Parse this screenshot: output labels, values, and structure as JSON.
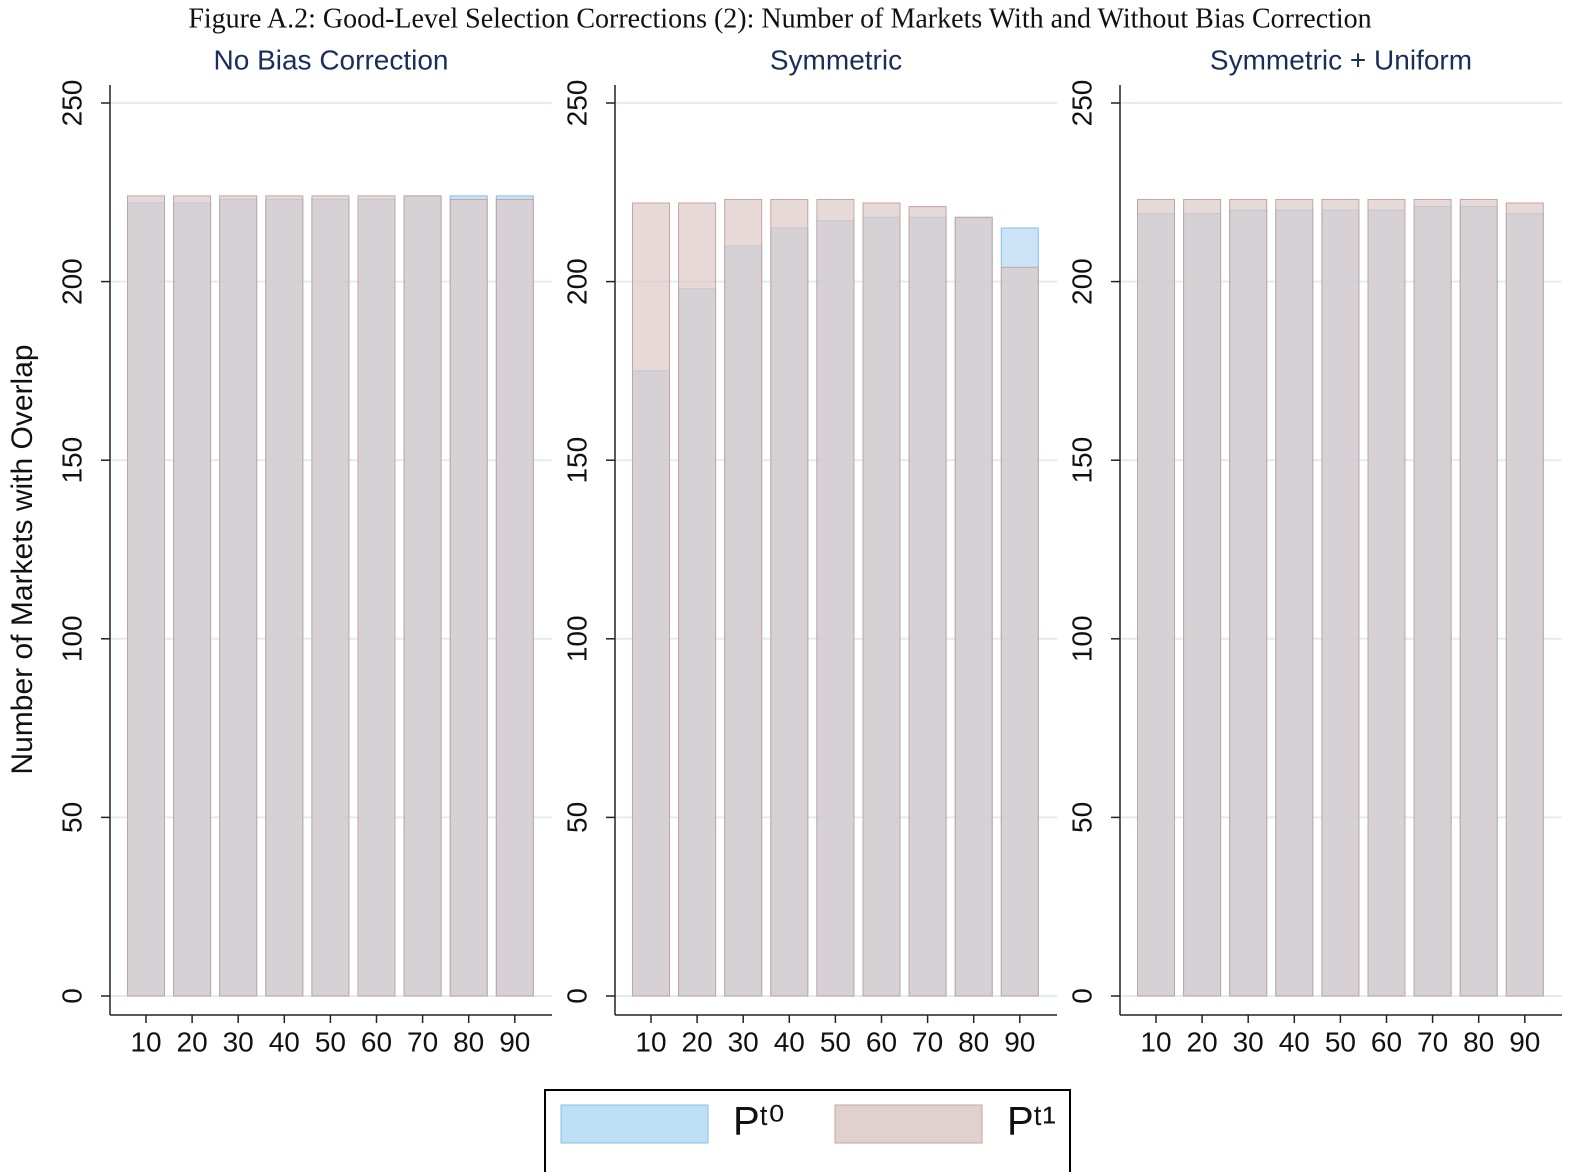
{
  "title": "Figure A.2: Good-Level Selection Corrections (2): Number of Markets With and Without Bias Correction",
  "chart_data": [
    {
      "type": "bar",
      "title": "No Bias Correction",
      "ylabel": "Number of Markets with Overlap",
      "categories": [
        "10",
        "20",
        "30",
        "40",
        "50",
        "60",
        "70",
        "80",
        "90"
      ],
      "series": [
        {
          "name": "Pᵗ⁰",
          "color": "#b3d8f2",
          "values": [
            222,
            222,
            223,
            223,
            223,
            223,
            224,
            224,
            224
          ]
        },
        {
          "name": "Pᵗ¹",
          "color": "#dcc9c6",
          "values": [
            224,
            224,
            224,
            224,
            224,
            224,
            224,
            223,
            223
          ]
        }
      ],
      "ylim": [
        0,
        250
      ],
      "yticks": [
        0,
        50,
        100,
        150,
        200,
        250
      ],
      "grid": true
    },
    {
      "type": "bar",
      "title": "Symmetric",
      "categories": [
        "10",
        "20",
        "30",
        "40",
        "50",
        "60",
        "70",
        "80",
        "90"
      ],
      "series": [
        {
          "name": "Pᵗ⁰",
          "color": "#b3d8f2",
          "values": [
            175,
            198,
            210,
            215,
            217,
            218,
            218,
            218,
            215
          ]
        },
        {
          "name": "Pᵗ¹",
          "color": "#dcc9c6",
          "values": [
            222,
            222,
            223,
            223,
            223,
            222,
            221,
            218,
            204
          ]
        }
      ],
      "ylim": [
        0,
        250
      ],
      "yticks": [
        0,
        50,
        100,
        150,
        200,
        250
      ],
      "grid": true
    },
    {
      "type": "bar",
      "title": "Symmetric + Uniform",
      "categories": [
        "10",
        "20",
        "30",
        "40",
        "50",
        "60",
        "70",
        "80",
        "90"
      ],
      "series": [
        {
          "name": "Pᵗ⁰",
          "color": "#b3d8f2",
          "values": [
            219,
            219,
            220,
            220,
            220,
            220,
            221,
            221,
            219
          ]
        },
        {
          "name": "Pᵗ¹",
          "color": "#dcc9c6",
          "values": [
            223,
            223,
            223,
            223,
            223,
            223,
            223,
            223,
            222
          ]
        }
      ],
      "ylim": [
        0,
        250
      ],
      "yticks": [
        0,
        50,
        100,
        150,
        200,
        250
      ],
      "grid": true
    }
  ]
}
